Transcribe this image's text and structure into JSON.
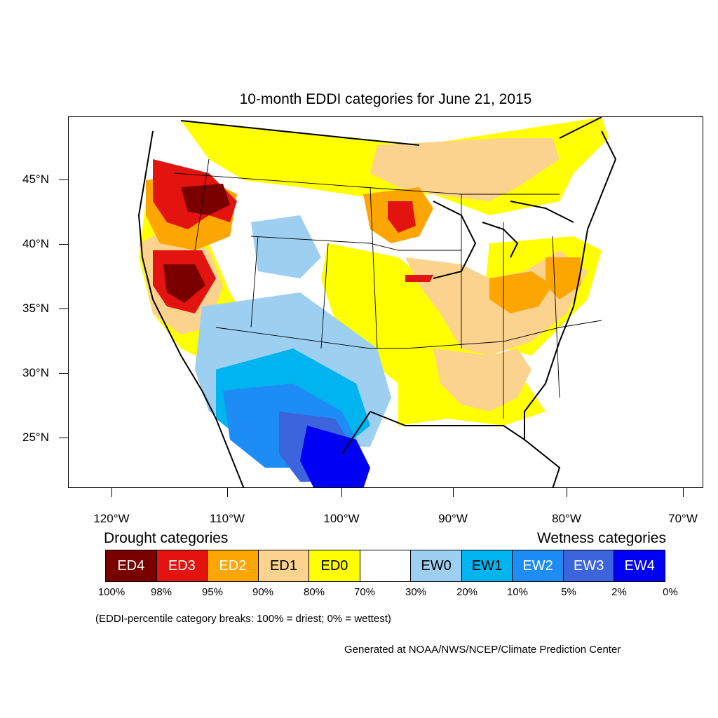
{
  "title": "10-month EDDI categories for June 21, 2015",
  "lat_labels": [
    "45°N",
    "40°N",
    "35°N",
    "30°N",
    "25°N"
  ],
  "lon_labels": [
    "120°W",
    "110°W",
    "100°W",
    "90°W",
    "80°W",
    "70°W"
  ],
  "legend": {
    "drought_title": "Drought categories",
    "wetness_title": "Wetness categories",
    "categories": [
      {
        "label": "ED4",
        "color": "#7a0000",
        "text_color": "#ffffff"
      },
      {
        "label": "ED3",
        "color": "#e3130f",
        "text_color": "#ffffff"
      },
      {
        "label": "ED2",
        "color": "#fda500",
        "text_color": "#ffffff"
      },
      {
        "label": "ED1",
        "color": "#fbd38f",
        "text_color": "#000000"
      },
      {
        "label": "ED0",
        "color": "#ffff00",
        "text_color": "#000000"
      },
      {
        "label": "",
        "color": "#ffffff",
        "text_color": "#000000"
      },
      {
        "label": "EW0",
        "color": "#9ccff0",
        "text_color": "#000000"
      },
      {
        "label": "EW1",
        "color": "#00b4f0",
        "text_color": "#000000"
      },
      {
        "label": "EW2",
        "color": "#1e8cf5",
        "text_color": "#ffffff"
      },
      {
        "label": "EW3",
        "color": "#3c64dc",
        "text_color": "#ffffff"
      },
      {
        "label": "EW4",
        "color": "#0000f5",
        "text_color": "#ffffff"
      }
    ],
    "percentiles": [
      "100%",
      "98%",
      "95%",
      "90%",
      "80%",
      "70%",
      "30%",
      "20%",
      "10%",
      "5%",
      "2%",
      "0%"
    ]
  },
  "note": "(EDDI-percentile category breaks: 100% = driest; 0% = wettest)",
  "credit": "Generated at NOAA/NWS/NCEP/Climate Prediction Center"
}
